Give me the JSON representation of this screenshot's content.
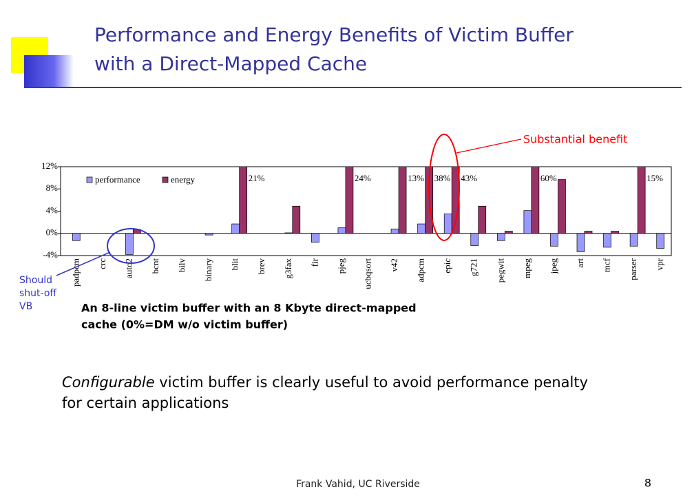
{
  "slide": {
    "title_lines": [
      "Performance and Energy Benefits of Victim Buffer",
      "with a Direct-Mapped Cache"
    ],
    "benefit_note": "Substantial benefit",
    "shutoff_note": [
      "Should",
      "shut-off",
      "VB"
    ],
    "caption": [
      "An 8-line victim buffer with an 8 Kbyte direct-mapped",
      "cache (0%=DM w/o victim buffer)"
    ],
    "body": {
      "emphasis": "Configurable",
      "line1": " victim buffer is clearly useful to avoid performance penalty",
      "line2": "for certain applications"
    },
    "footer": "Frank Vahid, UC Riverside",
    "page": "8"
  },
  "chart_data": {
    "type": "bar",
    "categories": [
      "padpcm",
      "crc",
      "auto2",
      "bcnt",
      "bilv",
      "binary",
      "blit",
      "brev",
      "g3fax",
      "fir",
      "pjeg",
      "ucbqsort",
      "v42",
      "adpcm",
      "epic",
      "g721",
      "pegwit",
      "mpeg",
      "jpeg",
      "art",
      "mcf",
      "parser",
      "vpr"
    ],
    "series": [
      {
        "name": "performance",
        "color": "#9999ff",
        "values": [
          -1.3,
          0,
          -3.8,
          0,
          0,
          -0.3,
          1.7,
          0,
          0.1,
          -1.6,
          1.0,
          0,
          0.8,
          1.7,
          3.5,
          -2.2,
          -1.3,
          4.1,
          -2.3,
          -3.3,
          -2.5,
          -2.3,
          -2.7
        ]
      },
      {
        "name": "energy",
        "color": "#993366",
        "values": [
          0,
          0,
          0.7,
          0,
          0,
          0,
          21,
          0,
          4.9,
          0,
          24,
          0,
          13,
          38,
          43,
          4.9,
          0.4,
          60,
          9.7,
          0.4,
          0.4,
          15,
          0
        ],
        "value_labels": [
          null,
          null,
          null,
          null,
          null,
          null,
          "21%",
          null,
          null,
          null,
          "24%",
          null,
          "13%",
          "38%",
          "43%",
          null,
          null,
          "60%",
          null,
          null,
          null,
          "15%",
          null
        ]
      }
    ],
    "ylim": [
      -4,
      12
    ],
    "yticks": [
      {
        "value": -4,
        "label": "-4%"
      },
      {
        "value": 0,
        "label": "0%"
      },
      {
        "value": 4,
        "label": "4%"
      },
      {
        "value": 8,
        "label": "8%"
      },
      {
        "value": 12,
        "label": "12%"
      }
    ],
    "grid": false,
    "legend": "top-left"
  }
}
